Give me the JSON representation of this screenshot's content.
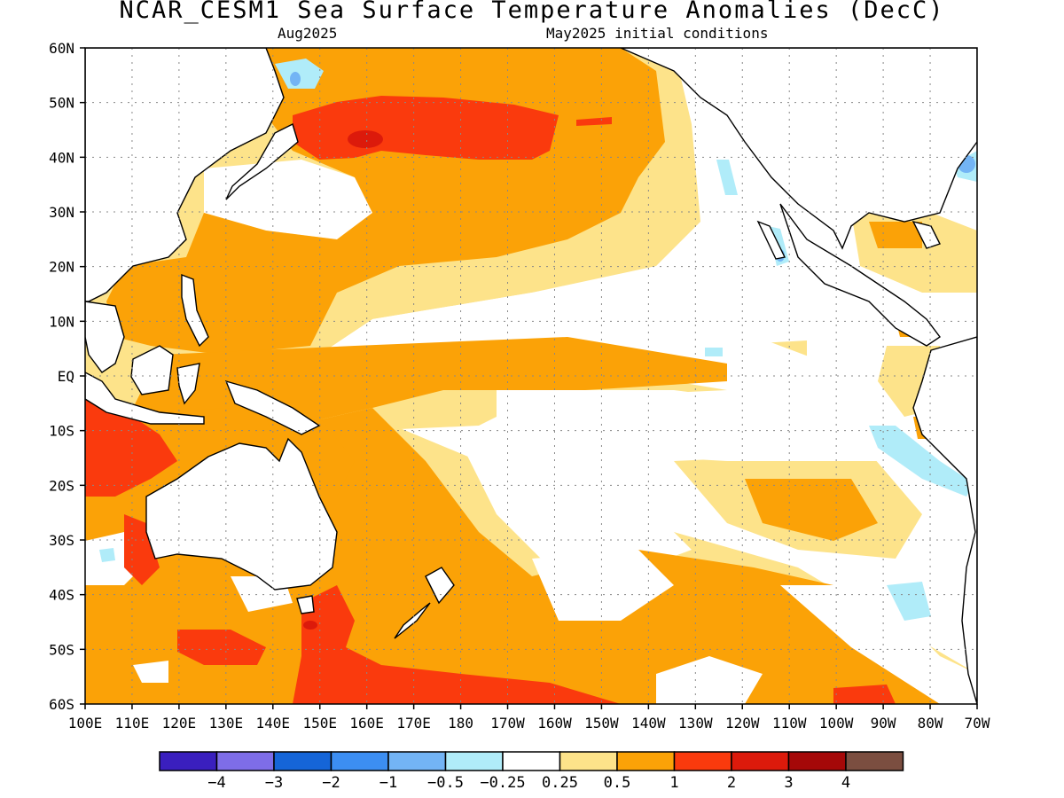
{
  "title": "NCAR_CESM1 Sea Surface Temperature Anomalies (DecC)",
  "subtitle_left": "Aug2025",
  "subtitle_right": "May2025 initial conditions",
  "lat_labels": [
    "60N",
    "50N",
    "40N",
    "30N",
    "20N",
    "10N",
    "EQ",
    "10S",
    "20S",
    "30S",
    "40S",
    "50S",
    "60S"
  ],
  "lon_labels": [
    "100E",
    "110E",
    "120E",
    "130E",
    "140E",
    "150E",
    "160E",
    "170E",
    "180",
    "170W",
    "160W",
    "150W",
    "140W",
    "130W",
    "120W",
    "110W",
    "100W",
    "90W",
    "80W",
    "70W"
  ],
  "map_extent": {
    "lon": [
      "100E",
      "70W"
    ],
    "lat": [
      "60S",
      "60N"
    ]
  },
  "colorbar": {
    "colors": [
      "#3a1fbe",
      "#7e6de8",
      "#1565d8",
      "#3c8ef2",
      "#73b4f5",
      "#b0ecf9",
      "#ffffff",
      "#fde38a",
      "#fba207",
      "#fa3a0d",
      "#dc1a0b",
      "#a50808",
      "#7b4e40"
    ],
    "labels": [
      "-4",
      "-3",
      "-2",
      "-1",
      "-0.5",
      "-0.25",
      "0.25",
      "0.5",
      "1",
      "2",
      "3",
      "4"
    ]
  },
  "palette": {
    "weak_pos": "#fde38a",
    "moderate_pos": "#fba207",
    "strong_pos": "#fa3a0d",
    "very_strong_pos": "#dc1a0b",
    "weak_neg": "#b0ecf9",
    "moderate_neg": "#73b4f5",
    "land": "#ffffff"
  }
}
